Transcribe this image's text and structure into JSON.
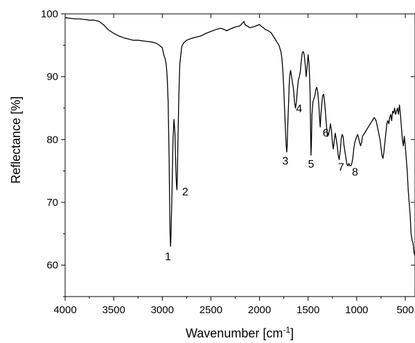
{
  "chart_data": {
    "type": "line",
    "xlabel": "Wavenumber [cm",
    "xlabel_superscript": "-1",
    "xlabel_suffix": "]",
    "ylabel": "Reflectance [%]",
    "xlim": [
      4000,
      400
    ],
    "ylim": [
      55,
      100
    ],
    "x_reversed": true,
    "grid": false,
    "x_ticks": [
      4000,
      3500,
      3000,
      2500,
      2000,
      1500,
      1000,
      500
    ],
    "x_tick_labels": [
      "4000",
      "3500",
      "3000",
      "2500",
      "2000",
      "1500",
      "1000",
      "500"
    ],
    "y_ticks": [
      60,
      70,
      80,
      90,
      100
    ],
    "y_tick_labels": [
      "60",
      "70",
      "80",
      "90",
      "100"
    ],
    "line_color": "#000000",
    "series": [
      {
        "x": [
          4000,
          3950,
          3900,
          3850,
          3800,
          3750,
          3700,
          3650,
          3600,
          3550,
          3500,
          3450,
          3400,
          3350,
          3300,
          3250,
          3200,
          3150,
          3100,
          3060,
          3030,
          3000,
          2985,
          2970,
          2960,
          2950,
          2940,
          2930,
          2925,
          2920,
          2915,
          2910,
          2900,
          2890,
          2880,
          2870,
          2865,
          2860,
          2855,
          2850,
          2845,
          2840,
          2830,
          2820,
          2800,
          2780,
          2750,
          2700,
          2650,
          2600,
          2550,
          2500,
          2450,
          2400,
          2360,
          2340,
          2300,
          2250,
          2200,
          2160,
          2150,
          2100,
          2050,
          2000,
          1980,
          1960,
          1940,
          1920,
          1900,
          1880,
          1860,
          1840,
          1820,
          1800,
          1790,
          1780,
          1770,
          1760,
          1750,
          1740,
          1730,
          1725,
          1720,
          1715,
          1710,
          1705,
          1700,
          1695,
          1690,
          1680,
          1670,
          1660,
          1650,
          1640,
          1630,
          1620,
          1610,
          1600,
          1590,
          1580,
          1570,
          1560,
          1550,
          1540,
          1530,
          1520,
          1510,
          1500,
          1490,
          1480,
          1475,
          1470,
          1465,
          1460,
          1450,
          1440,
          1430,
          1420,
          1410,
          1400,
          1390,
          1380,
          1375,
          1370,
          1360,
          1350,
          1340,
          1330,
          1320,
          1310,
          1300,
          1290,
          1280,
          1270,
          1260,
          1250,
          1240,
          1230,
          1220,
          1210,
          1200,
          1190,
          1180,
          1170,
          1160,
          1150,
          1140,
          1130,
          1120,
          1110,
          1100,
          1090,
          1080,
          1070,
          1060,
          1050,
          1040,
          1030,
          1020,
          1010,
          1000,
          990,
          980,
          970,
          960,
          950,
          940,
          920,
          900,
          880,
          860,
          840,
          820,
          800,
          780,
          760,
          740,
          730,
          720,
          710,
          700,
          690,
          680,
          670,
          660,
          650,
          640,
          630,
          620,
          610,
          600,
          590,
          580,
          570,
          560,
          550,
          540,
          530,
          520,
          510,
          500,
          490,
          480,
          470,
          460,
          450,
          440,
          430,
          420,
          410,
          400
        ],
        "y": [
          99.4,
          99.3,
          99.2,
          99.2,
          99.1,
          99.0,
          99.0,
          98.8,
          98.2,
          97.4,
          96.9,
          96.5,
          96.2,
          96.0,
          95.8,
          95.8,
          95.7,
          95.6,
          95.5,
          95.3,
          95.0,
          94.6,
          93.5,
          92.8,
          92.0,
          90.0,
          86.0,
          77.0,
          70.0,
          65.0,
          63.0,
          65.0,
          72.0,
          80.0,
          83.2,
          81.0,
          78.0,
          75.0,
          73.0,
          72.0,
          74.0,
          79.0,
          87.0,
          92.0,
          94.8,
          95.4,
          95.8,
          96.1,
          96.3,
          96.5,
          96.9,
          97.2,
          97.5,
          97.7,
          97.5,
          97.3,
          97.6,
          97.9,
          98.1,
          98.8,
          98.3,
          97.8,
          98.0,
          98.3,
          98.0,
          97.8,
          97.5,
          97.4,
          97.2,
          97.0,
          96.5,
          96.0,
          95.5,
          95.0,
          94.5,
          94.0,
          93.0,
          91.0,
          88.0,
          84.0,
          80.5,
          79.0,
          78.0,
          79.0,
          82.0,
          84.0,
          86.0,
          88.5,
          90.0,
          91.0,
          90.0,
          89.0,
          88.0,
          86.0,
          85.0,
          86.0,
          88.0,
          89.5,
          90.0,
          90.8,
          92.5,
          93.8,
          94.0,
          93.5,
          92.0,
          90.0,
          91.5,
          93.5,
          92.0,
          88.0,
          82.0,
          77.5,
          80.0,
          84.0,
          86.0,
          86.5,
          87.0,
          88.0,
          88.3,
          87.5,
          85.5,
          83.0,
          82.0,
          83.5,
          85.5,
          87.0,
          87.2,
          86.0,
          84.0,
          82.0,
          80.5,
          80.8,
          81.5,
          82.5,
          81.5,
          79.5,
          78.5,
          80.0,
          81.0,
          80.0,
          79.0,
          77.5,
          76.8,
          78.0,
          80.0,
          80.8,
          80.5,
          79.0,
          78.0,
          77.0,
          76.0,
          75.8,
          76.2,
          75.8,
          75.8,
          76.2,
          77.0,
          78.5,
          79.5,
          80.0,
          80.5,
          80.8,
          80.2,
          79.5,
          79.0,
          79.5,
          80.5,
          81.0,
          81.5,
          82.0,
          82.5,
          83.0,
          83.5,
          83.0,
          81.5,
          80.0,
          77.5,
          77.0,
          78.0,
          79.5,
          81.0,
          82.5,
          83.0,
          82.5,
          83.5,
          84.0,
          83.0,
          84.5,
          84.2,
          85.0,
          84.0,
          84.5,
          85.0,
          84.0,
          85.5,
          84.0,
          82.0,
          80.0,
          79.0,
          80.5,
          79.0,
          77.0,
          75.0,
          72.0,
          70.0,
          68.0,
          65.0,
          64.0,
          63.5,
          62.0,
          61.5
        ]
      }
    ],
    "annotations": [
      {
        "text": "1",
        "x": 2920,
        "y": 63.0
      },
      {
        "text": "2",
        "x": 2850,
        "y": 72.0
      },
      {
        "text": "3",
        "x": 1720,
        "y": 78.0
      },
      {
        "text": "4",
        "x": 1650,
        "y": 85.0
      },
      {
        "text": "5",
        "x": 1470,
        "y": 77.5
      },
      {
        "text": "6",
        "x": 1375,
        "y": 82.0
      },
      {
        "text": "7",
        "x": 1160,
        "y": 76.8
      },
      {
        "text": "8",
        "x": 1060,
        "y": 75.8
      }
    ]
  }
}
